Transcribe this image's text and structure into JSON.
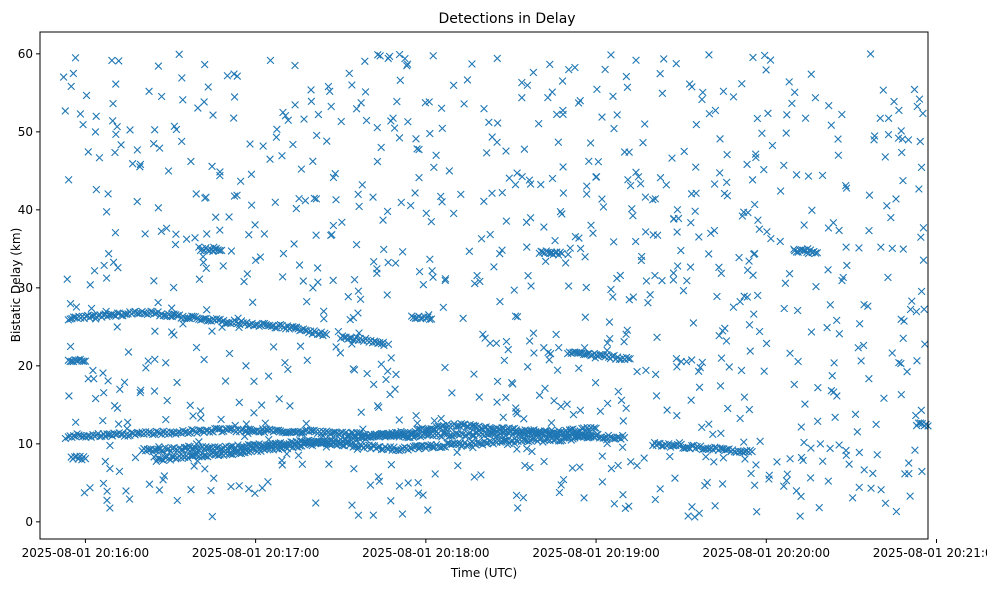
{
  "chart_data": {
    "type": "scatter",
    "title": "Detections in Delay",
    "xlabel": "Time (UTC)",
    "ylabel": "Bistatic Delay (km)",
    "marker": "x",
    "marker_color": "#1f77b4",
    "x_axis_type": "time",
    "xlim": [
      "2025-08-01 20:15:44",
      "2025-08-01 20:20:57"
    ],
    "ylim": [
      -2.2,
      62.8
    ],
    "x_ticks": [
      "2025-08-01 20:16:00",
      "2025-08-01 20:17:00",
      "2025-08-01 20:18:00",
      "2025-08-01 20:19:00",
      "2025-08-01 20:20:00",
      "2025-08-01 20:21:00"
    ],
    "y_ticks": [
      0,
      10,
      20,
      30,
      40,
      50,
      60
    ],
    "grid": false,
    "tracks": [
      {
        "x": [
          "2025-08-01 20:15:54",
          "2025-08-01 20:16:20",
          "2025-08-01 20:16:50",
          "2025-08-01 20:17:20",
          "2025-08-01 20:17:50",
          "2025-08-01 20:18:20",
          "2025-08-01 20:18:50",
          "2025-08-01 20:19:00"
        ],
        "y": [
          11.0,
          11.3,
          11.8,
          11.5,
          11.0,
          11.2,
          11.6,
          12.0
        ]
      },
      {
        "x": [
          "2025-08-01 20:16:20",
          "2025-08-01 20:16:50",
          "2025-08-01 20:17:20",
          "2025-08-01 20:17:50",
          "2025-08-01 20:18:10",
          "2025-08-01 20:18:30",
          "2025-08-01 20:18:50",
          "2025-08-01 20:19:00"
        ],
        "y": [
          9.2,
          9.5,
          10.3,
          9.3,
          9.9,
          10.3,
          10.6,
          11.0
        ]
      },
      {
        "x": [
          "2025-08-01 20:16:25",
          "2025-08-01 20:16:50",
          "2025-08-01 20:17:20",
          "2025-08-01 20:17:50",
          "2025-08-01 20:18:10",
          "2025-08-01 20:18:30",
          "2025-08-01 20:18:50",
          "2025-08-01 20:19:10"
        ],
        "y": [
          8.0,
          8.8,
          10.0,
          11.3,
          12.4,
          11.8,
          11.2,
          10.8
        ]
      },
      {
        "x": [
          "2025-08-01 20:15:54",
          "2025-08-01 20:16:20",
          "2025-08-01 20:16:50",
          "2025-08-01 20:17:10",
          "2025-08-01 20:17:25"
        ],
        "y": [
          26.0,
          26.9,
          25.7,
          25.0,
          24.0
        ]
      },
      {
        "x": [
          "2025-08-01 20:17:30",
          "2025-08-01 20:17:45"
        ],
        "y": [
          23.7,
          23.0
        ]
      },
      {
        "x": [
          "2025-08-01 20:17:55",
          "2025-08-01 20:18:02"
        ],
        "y": [
          26.4,
          26.0
        ]
      },
      {
        "x": [
          "2025-08-01 20:18:50",
          "2025-08-01 20:19:12"
        ],
        "y": [
          21.7,
          20.9
        ]
      },
      {
        "x": [
          "2025-08-01 20:19:20",
          "2025-08-01 20:19:55"
        ],
        "y": [
          10.0,
          9.0
        ]
      },
      {
        "x": [
          "2025-08-01 20:15:54",
          "2025-08-01 20:16:00"
        ],
        "y": [
          20.7,
          20.6
        ]
      },
      {
        "x": [
          "2025-08-01 20:15:55",
          "2025-08-01 20:16:00"
        ],
        "y": [
          8.3,
          8.1
        ]
      },
      {
        "x": [
          "2025-08-01 20:16:40",
          "2025-08-01 20:16:48"
        ],
        "y": [
          35.0,
          34.8
        ]
      },
      {
        "x": [
          "2025-08-01 20:18:40",
          "2025-08-01 20:18:48"
        ],
        "y": [
          34.6,
          34.4
        ]
      },
      {
        "x": [
          "2025-08-01 20:20:10",
          "2025-08-01 20:20:18"
        ],
        "y": [
          34.8,
          34.5
        ]
      },
      {
        "x": [
          "2025-08-01 20:20:53",
          "2025-08-01 20:20:57"
        ],
        "y": [
          12.5,
          12.3
        ]
      }
    ]
  }
}
